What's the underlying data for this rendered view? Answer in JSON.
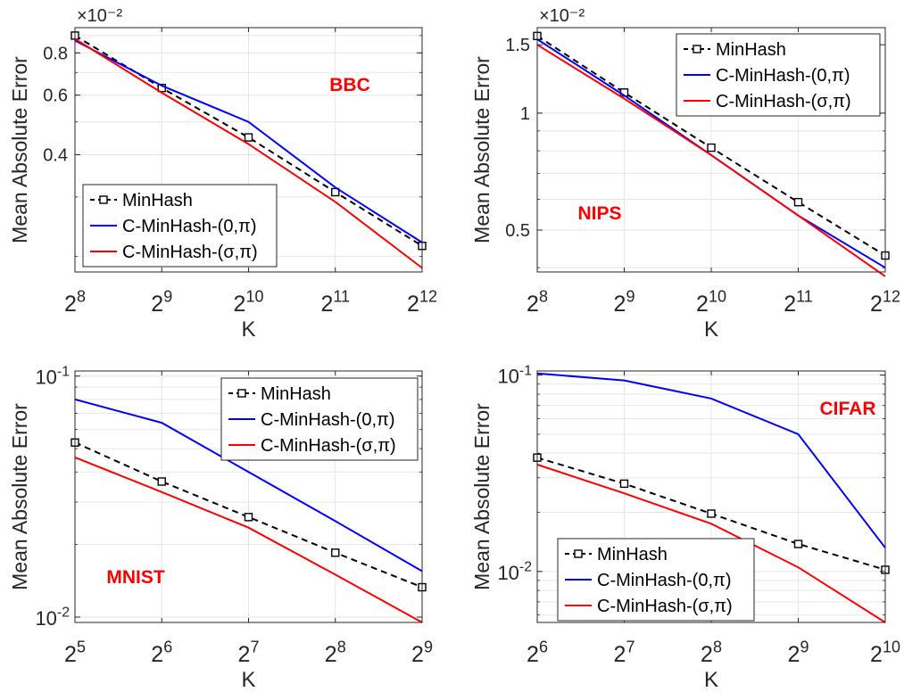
{
  "colors": {
    "minhash": "#000000",
    "cminhash_0": "#0000ff",
    "cminhash_sigma": "#ff0000",
    "label": "#ff0000",
    "grid": "#e6e6e6",
    "axes": "#262626"
  },
  "chart_data": [
    {
      "type": "line",
      "title": "",
      "annotation": "BBC",
      "annotation_position": "top-right",
      "xlabel": "K",
      "ylabel": "Mean Absolute Error",
      "x_scale": "log2",
      "y_scale": "log",
      "y_multiplier_label": "×10⁻²",
      "x": [
        256,
        512,
        1024,
        2048,
        4096
      ],
      "x_tick_labels": [
        {
          "base": "2",
          "exp": "8"
        },
        {
          "base": "2",
          "exp": "9"
        },
        {
          "base": "2",
          "exp": "10"
        },
        {
          "base": "2",
          "exp": "11"
        },
        {
          "base": "2",
          "exp": "12"
        }
      ],
      "xlim": [
        256,
        4096
      ],
      "ylim": [
        0.0018,
        0.0095
      ],
      "y_ticks": [
        0.004,
        0.006,
        0.008
      ],
      "y_tick_labels": [
        "0.4",
        "0.6",
        "0.8"
      ],
      "legend_position": "bottom-left",
      "series": [
        {
          "name": "MinHash",
          "style": "dashed-square",
          "color_key": "minhash",
          "values": [
            0.009,
            0.0063,
            0.0045,
            0.0031,
            0.00215
          ]
        },
        {
          "name": "C-MinHash-(0,π)",
          "style": "solid",
          "color_key": "cminhash_0",
          "values": [
            0.0087,
            0.0064,
            0.005,
            0.0032,
            0.0022
          ]
        },
        {
          "name": "C-MinHash-(σ,π)",
          "style": "solid",
          "color_key": "cminhash_sigma",
          "values": [
            0.0088,
            0.0061,
            0.0043,
            0.0029,
            0.00185
          ]
        }
      ]
    },
    {
      "type": "line",
      "title": "",
      "annotation": "NIPS",
      "annotation_position": "bottom-left",
      "xlabel": "K",
      "ylabel": "Mean Absolute Error",
      "x_scale": "log2",
      "y_scale": "log",
      "y_multiplier_label": "×10⁻²",
      "x": [
        256,
        512,
        1024,
        2048,
        4096
      ],
      "x_tick_labels": [
        {
          "base": "2",
          "exp": "8"
        },
        {
          "base": "2",
          "exp": "9"
        },
        {
          "base": "2",
          "exp": "10"
        },
        {
          "base": "2",
          "exp": "11"
        },
        {
          "base": "2",
          "exp": "12"
        }
      ],
      "xlim": [
        256,
        4096
      ],
      "ylim": [
        0.0039,
        0.0166
      ],
      "y_ticks": [
        0.005,
        0.01,
        0.015
      ],
      "y_tick_labels": [
        "0.5",
        "1",
        "1.5"
      ],
      "legend_position": "top-right",
      "series": [
        {
          "name": "MinHash",
          "style": "dashed-square",
          "color_key": "minhash",
          "values": [
            0.0158,
            0.0113,
            0.00815,
            0.0059,
            0.0043
          ]
        },
        {
          "name": "C-MinHash-(0,π)",
          "style": "solid",
          "color_key": "cminhash_0",
          "values": [
            0.0155,
            0.0111,
            0.0078,
            0.00545,
            0.004
          ]
        },
        {
          "name": "C-MinHash-(σ,π)",
          "style": "solid",
          "color_key": "cminhash_sigma",
          "values": [
            0.015,
            0.0109,
            0.0078,
            0.00545,
            0.0038
          ]
        }
      ]
    },
    {
      "type": "line",
      "title": "",
      "annotation": "MNIST",
      "annotation_position": "bottom-left",
      "xlabel": "K",
      "ylabel": "Mean Absolute Error",
      "x_scale": "log2",
      "y_scale": "log",
      "x": [
        32,
        64,
        128,
        256,
        512
      ],
      "x_tick_labels": [
        {
          "base": "2",
          "exp": "5"
        },
        {
          "base": "2",
          "exp": "6"
        },
        {
          "base": "2",
          "exp": "7"
        },
        {
          "base": "2",
          "exp": "8"
        },
        {
          "base": "2",
          "exp": "9"
        }
      ],
      "xlim": [
        32,
        512
      ],
      "ylim": [
        0.0095,
        0.105
      ],
      "y_ticks": [
        0.01,
        0.1
      ],
      "y_tick_labels": [
        {
          "base": "10",
          "exp": "-2"
        },
        {
          "base": "10",
          "exp": "-1"
        }
      ],
      "legend_position": "top-right",
      "series": [
        {
          "name": "MinHash",
          "style": "dashed-square",
          "color_key": "minhash",
          "values": [
            0.053,
            0.0365,
            0.026,
            0.0185,
            0.0133
          ]
        },
        {
          "name": "C-MinHash-(0,π)",
          "style": "solid",
          "color_key": "cminhash_0",
          "values": [
            0.08,
            0.064,
            0.04,
            0.025,
            0.0155
          ]
        },
        {
          "name": "C-MinHash-(σ,π)",
          "style": "solid",
          "color_key": "cminhash_sigma",
          "values": [
            0.046,
            0.033,
            0.0235,
            0.015,
            0.0095
          ]
        }
      ]
    },
    {
      "type": "line",
      "title": "",
      "annotation": "CIFAR",
      "annotation_position": "top-right",
      "xlabel": "K",
      "ylabel": "Mean Absolute Error",
      "x_scale": "log2",
      "y_scale": "log",
      "x": [
        64,
        128,
        256,
        512,
        1024
      ],
      "x_tick_labels": [
        {
          "base": "2",
          "exp": "6"
        },
        {
          "base": "2",
          "exp": "7"
        },
        {
          "base": "2",
          "exp": "8"
        },
        {
          "base": "2",
          "exp": "9"
        },
        {
          "base": "2",
          "exp": "10"
        }
      ],
      "xlim": [
        64,
        1024
      ],
      "ylim": [
        0.0055,
        0.105
      ],
      "y_ticks": [
        0.01,
        0.1
      ],
      "y_tick_labels": [
        {
          "base": "10",
          "exp": "-2"
        },
        {
          "base": "10",
          "exp": "-1"
        }
      ],
      "legend_position": "bottom-left",
      "series": [
        {
          "name": "MinHash",
          "style": "dashed-square",
          "color_key": "minhash",
          "values": [
            0.038,
            0.028,
            0.0197,
            0.0138,
            0.0102
          ]
        },
        {
          "name": "C-MinHash-(0,π)",
          "style": "solid",
          "color_key": "cminhash_0",
          "values": [
            0.102,
            0.094,
            0.076,
            0.05,
            0.0132
          ]
        },
        {
          "name": "C-MinHash-(σ,π)",
          "style": "solid",
          "color_key": "cminhash_sigma",
          "values": [
            0.035,
            0.025,
            0.0175,
            0.0105,
            0.0055
          ]
        }
      ]
    }
  ]
}
